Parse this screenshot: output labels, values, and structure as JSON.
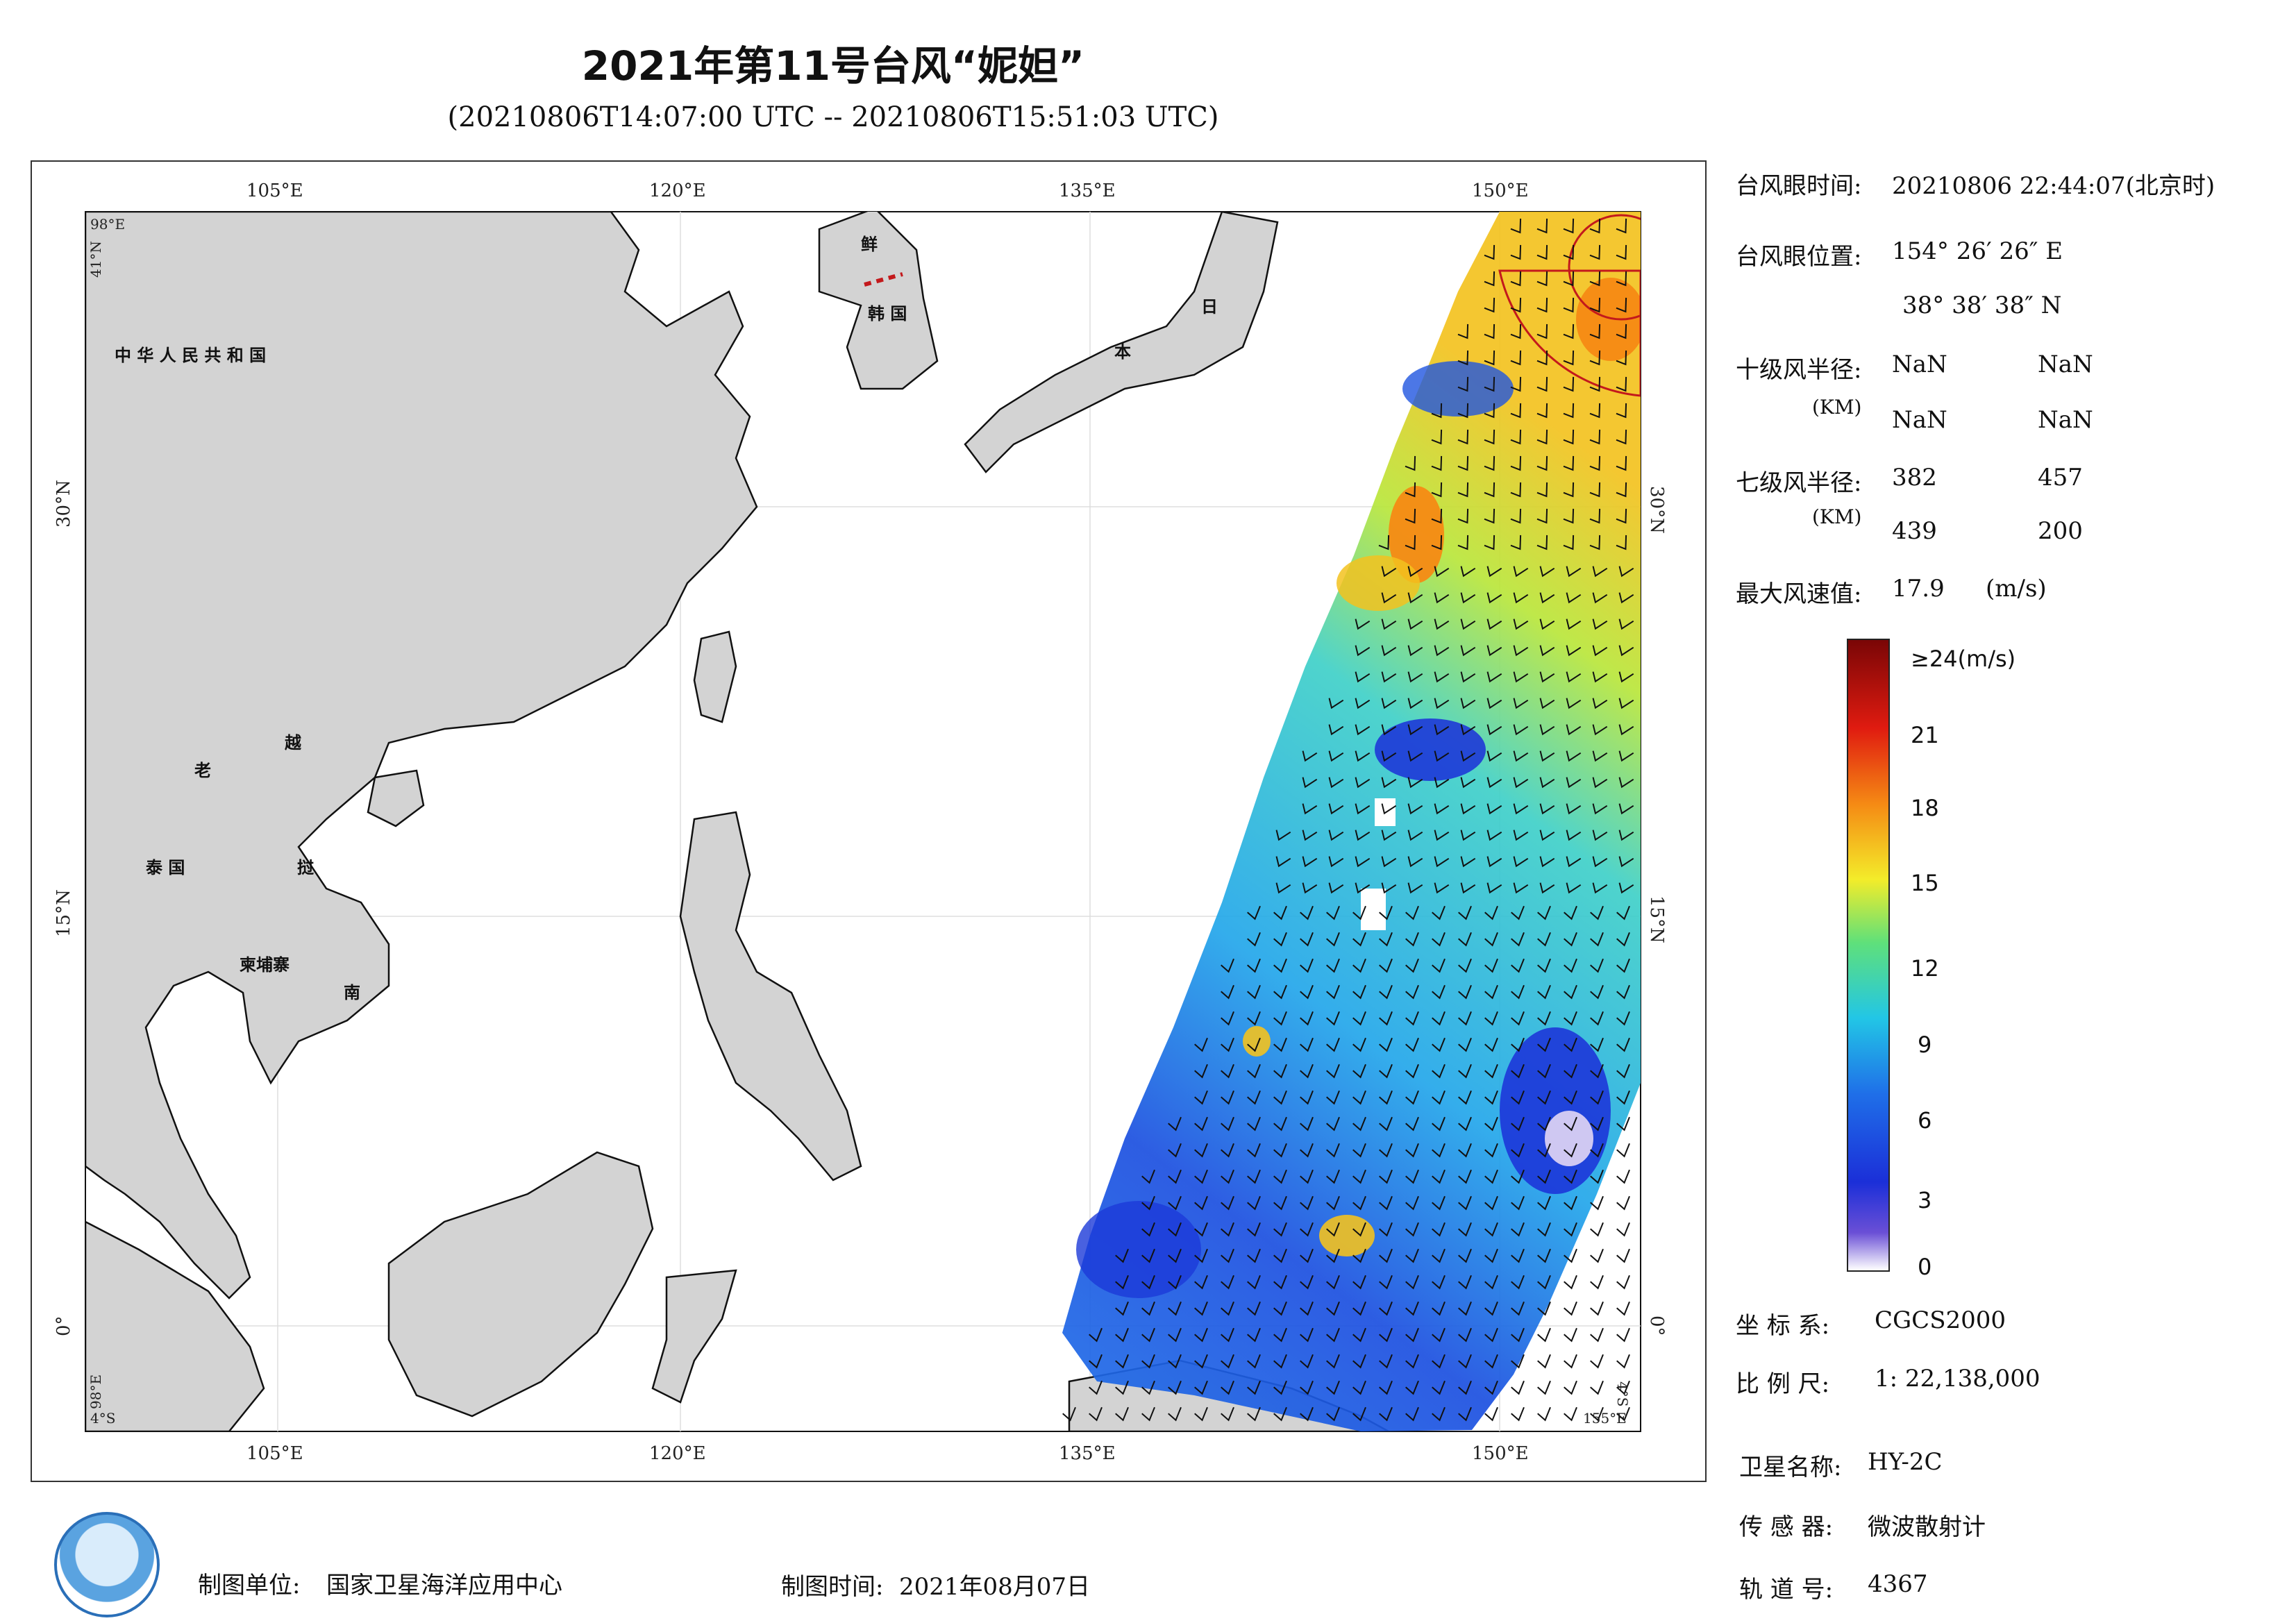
{
  "title": "2021年第11号台风“妮妲”",
  "subtitle": "(20210806T14:07:00 UTC -- 20210806T15:51:03 UTC)",
  "map": {
    "lon_ticks": [
      "105°E",
      "120°E",
      "135°E",
      "150°E"
    ],
    "lat_ticks": [
      "30°N",
      "15°N",
      "0°"
    ],
    "corner_tl_lon": "98°E",
    "corner_tl_lat": "41°N",
    "corner_bl_lon": "98°E",
    "corner_bl_lat": "4°S",
    "corner_br_lon": "155°E",
    "corner_br_lat": "4°S",
    "labels": {
      "china": "中 华 人 民 共 和 国",
      "laos": "老",
      "viet_yue": "越",
      "thailand": "泰 国",
      "viet_ting": "挝",
      "cambodia": "柬埔寨",
      "viet_nan": "南",
      "korea_xian": "鲜",
      "korea_han": "韩 国",
      "japan_ri": "日",
      "japan_ben": "本"
    },
    "colors": {
      "land": "#d3d3d3",
      "ocean": "#ffffff",
      "coast": "#111111"
    }
  },
  "info": {
    "eye_time_label": "台风眼时间:",
    "eye_time_value": "20210806 22:44:07(北京时)",
    "eye_pos_label": "台风眼位置:",
    "eye_pos_lon": "154° 26′ 26″ E",
    "eye_pos_lat": "38° 38′ 38″ N",
    "r10_label": "十级风半径:",
    "r10_unit": "(KM)",
    "r10_values": [
      "NaN",
      "NaN",
      "NaN",
      "NaN"
    ],
    "r7_label": "七级风半径:",
    "r7_unit": "(KM)",
    "r7_values": [
      "382",
      "457",
      "439",
      "200"
    ],
    "max_wind_label": "最大风速值:",
    "max_wind_value": "17.9",
    "max_wind_unit": "(m/s)"
  },
  "colorbar": {
    "ticks": [
      "≥24(m/s)",
      "21",
      "18",
      "15",
      "12",
      "9",
      "6",
      "3",
      "0"
    ],
    "colors": [
      "#ffffff",
      "#6a4fd6",
      "#1b2fd8",
      "#1f6fe8",
      "#22c6e6",
      "#5fe07a",
      "#f3ec2a",
      "#f58a14",
      "#e01b10",
      "#7a0606"
    ]
  },
  "meta": {
    "coord_label": "坐 标 系:",
    "coord_value": "CGCS2000",
    "scale_label": "比 例 尺:",
    "scale_value": "1: 22,138,000",
    "sat_label": "卫星名称:",
    "sat_value": "HY-2C",
    "sensor_label": "传 感 器:",
    "sensor_value": "微波散射计",
    "orbit_label": "轨 道 号:",
    "orbit_value": "4367"
  },
  "footer": {
    "unit_label": "制图单位:",
    "unit_value": "国家卫星海洋应用中心",
    "time_label": "制图时间:",
    "time_value": "2021年08月07日"
  }
}
